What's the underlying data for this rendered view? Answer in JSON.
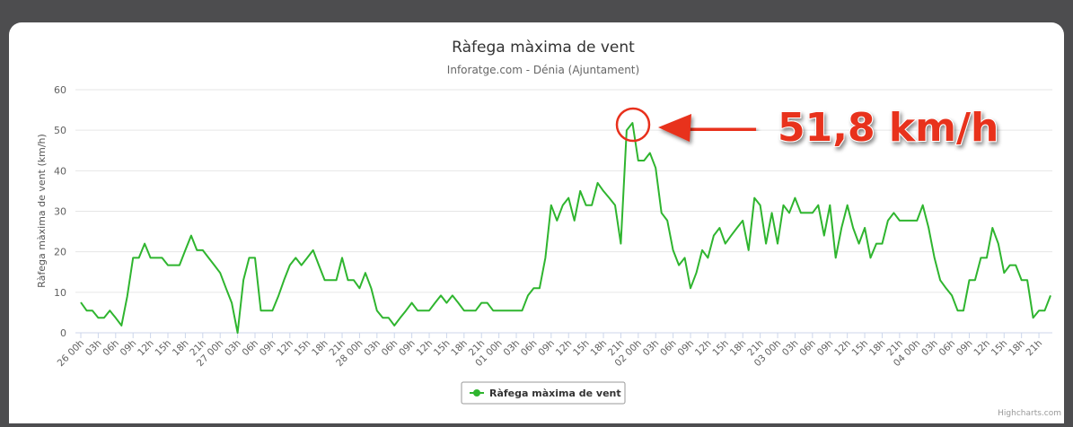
{
  "chart_data": {
    "type": "line",
    "title": "Ràfega màxima de vent",
    "subtitle": "Inforatge.com - Dénia (Ajuntament)",
    "y_label": "Ràfega màxima de vent (km/h)",
    "annotation": "51,8 km/h",
    "credit": "Highcharts.com",
    "x": [
      0,
      1,
      2,
      3,
      4,
      5,
      6,
      7,
      8,
      9,
      10,
      11,
      12,
      13,
      14,
      15,
      16,
      17,
      18,
      19,
      20,
      21,
      22,
      23,
      24,
      25,
      26,
      27,
      28,
      29,
      30,
      31,
      32,
      33,
      34,
      35,
      36,
      37,
      38,
      39,
      40,
      41,
      42,
      43,
      44,
      45,
      46,
      47,
      48,
      49,
      50,
      51,
      52,
      53,
      54,
      55,
      56,
      57,
      58,
      59,
      60,
      61,
      62,
      63,
      64,
      65,
      66,
      67,
      68,
      69,
      70,
      71,
      72,
      73,
      74,
      75,
      76,
      77,
      78,
      79,
      80,
      81,
      82,
      83,
      84,
      85,
      86,
      87,
      88,
      89,
      90,
      91,
      92,
      93,
      94,
      95,
      96,
      97,
      98,
      99,
      100,
      101,
      102,
      103,
      104,
      105,
      106,
      107,
      108,
      109,
      110,
      111,
      112,
      113,
      114,
      115,
      116,
      117,
      118,
      119,
      120,
      121,
      122,
      123,
      124,
      125,
      126,
      127,
      128,
      129,
      130,
      131,
      132,
      133,
      134,
      135,
      136,
      137,
      138,
      139,
      140,
      141,
      142,
      143,
      144,
      145,
      146,
      147,
      148,
      149,
      150,
      151,
      152,
      153,
      154,
      155,
      156,
      157,
      158,
      159,
      160,
      161,
      162,
      163,
      164,
      165,
      166,
      167
    ],
    "series": [
      {
        "name": "Ràfega màxima de vent",
        "color": "#2fb52f",
        "values": [
          7.5,
          5.5,
          5.5,
          3.7,
          3.7,
          5.5,
          3.7,
          1.8,
          9,
          18.5,
          18.5,
          22,
          18.5,
          18.5,
          18.5,
          16.7,
          16.7,
          16.7,
          20.4,
          24,
          20.4,
          20.4,
          18.5,
          16.7,
          14.8,
          11,
          7.4,
          0,
          13,
          18.5,
          18.5,
          5.5,
          5.5,
          5.5,
          9,
          13,
          16.7,
          18.5,
          16.7,
          18.5,
          20.4,
          16.7,
          13,
          13,
          13,
          18.5,
          13,
          13,
          11,
          14.8,
          11,
          5.5,
          3.7,
          3.7,
          1.8,
          3.7,
          5.5,
          7.4,
          5.5,
          5.5,
          5.5,
          7.4,
          9.2,
          7.4,
          9.2,
          7.4,
          5.5,
          5.5,
          5.5,
          7.4,
          7.4,
          5.5,
          5.5,
          5.5,
          5.5,
          5.5,
          5.5,
          9.2,
          11,
          11,
          18.5,
          31.5,
          27.7,
          31.5,
          33.3,
          27.7,
          35,
          31.5,
          31.5,
          37,
          35,
          33.3,
          31.5,
          22,
          50,
          51.8,
          42.5,
          42.5,
          44.4,
          40.7,
          29.6,
          27.7,
          20.4,
          16.7,
          18.5,
          11,
          14.8,
          20.4,
          18.5,
          24,
          25.9,
          22,
          24,
          25.9,
          27.7,
          20.4,
          33.3,
          31.5,
          22,
          29.6,
          22,
          31.5,
          29.6,
          33.3,
          29.6,
          29.6,
          29.6,
          31.5,
          24,
          31.5,
          18.5,
          25.9,
          31.5,
          25.9,
          22,
          25.9,
          18.5,
          22,
          22,
          27.7,
          29.6,
          27.7,
          27.7,
          27.7,
          27.7,
          31.5,
          25.9,
          18.5,
          13,
          11,
          9.2,
          5.5,
          5.5,
          13,
          13,
          18.5,
          18.5,
          25.9,
          22,
          14.8,
          16.7,
          16.7,
          13,
          13,
          3.7,
          5.5,
          5.5,
          9.2
        ]
      }
    ],
    "xlim": [
      0,
      167
    ],
    "xticks": [
      {
        "value": 0,
        "label": "26 00h"
      },
      {
        "value": 3,
        "label": "03h"
      },
      {
        "value": 6,
        "label": "06h"
      },
      {
        "value": 9,
        "label": "09h"
      },
      {
        "value": 12,
        "label": "12h"
      },
      {
        "value": 15,
        "label": "15h"
      },
      {
        "value": 18,
        "label": "18h"
      },
      {
        "value": 21,
        "label": "21h"
      },
      {
        "value": 24,
        "label": "27 00h"
      },
      {
        "value": 27,
        "label": "03h"
      },
      {
        "value": 30,
        "label": "06h"
      },
      {
        "value": 33,
        "label": "09h"
      },
      {
        "value": 36,
        "label": "12h"
      },
      {
        "value": 39,
        "label": "15h"
      },
      {
        "value": 42,
        "label": "18h"
      },
      {
        "value": 45,
        "label": "21h"
      },
      {
        "value": 48,
        "label": "28 00h"
      },
      {
        "value": 51,
        "label": "03h"
      },
      {
        "value": 54,
        "label": "06h"
      },
      {
        "value": 57,
        "label": "09h"
      },
      {
        "value": 60,
        "label": "12h"
      },
      {
        "value": 63,
        "label": "15h"
      },
      {
        "value": 66,
        "label": "18h"
      },
      {
        "value": 69,
        "label": "21h"
      },
      {
        "value": 72,
        "label": "01 00h"
      },
      {
        "value": 75,
        "label": "03h"
      },
      {
        "value": 78,
        "label": "06h"
      },
      {
        "value": 81,
        "label": "09h"
      },
      {
        "value": 84,
        "label": "12h"
      },
      {
        "value": 87,
        "label": "15h"
      },
      {
        "value": 90,
        "label": "18h"
      },
      {
        "value": 93,
        "label": "21h"
      },
      {
        "value": 96,
        "label": "02 00h"
      },
      {
        "value": 99,
        "label": "03h"
      },
      {
        "value": 102,
        "label": "06h"
      },
      {
        "value": 105,
        "label": "09h"
      },
      {
        "value": 108,
        "label": "12h"
      },
      {
        "value": 111,
        "label": "15h"
      },
      {
        "value": 114,
        "label": "18h"
      },
      {
        "value": 117,
        "label": "21h"
      },
      {
        "value": 120,
        "label": "03 00h"
      },
      {
        "value": 123,
        "label": "03h"
      },
      {
        "value": 126,
        "label": "06h"
      },
      {
        "value": 129,
        "label": "09h"
      },
      {
        "value": 132,
        "label": "12h"
      },
      {
        "value": 135,
        "label": "15h"
      },
      {
        "value": 138,
        "label": "18h"
      },
      {
        "value": 141,
        "label": "21h"
      },
      {
        "value": 144,
        "label": "04 00h"
      },
      {
        "value": 147,
        "label": "03h"
      },
      {
        "value": 150,
        "label": "06h"
      },
      {
        "value": 153,
        "label": "09h"
      },
      {
        "value": 156,
        "label": "12h"
      },
      {
        "value": 159,
        "label": "15h"
      },
      {
        "value": 162,
        "label": "18h"
      },
      {
        "value": 165,
        "label": "21h"
      }
    ],
    "ylim": [
      0,
      60
    ],
    "yticks": [
      0,
      10,
      20,
      30,
      40,
      50,
      60
    ],
    "grid": true
  }
}
